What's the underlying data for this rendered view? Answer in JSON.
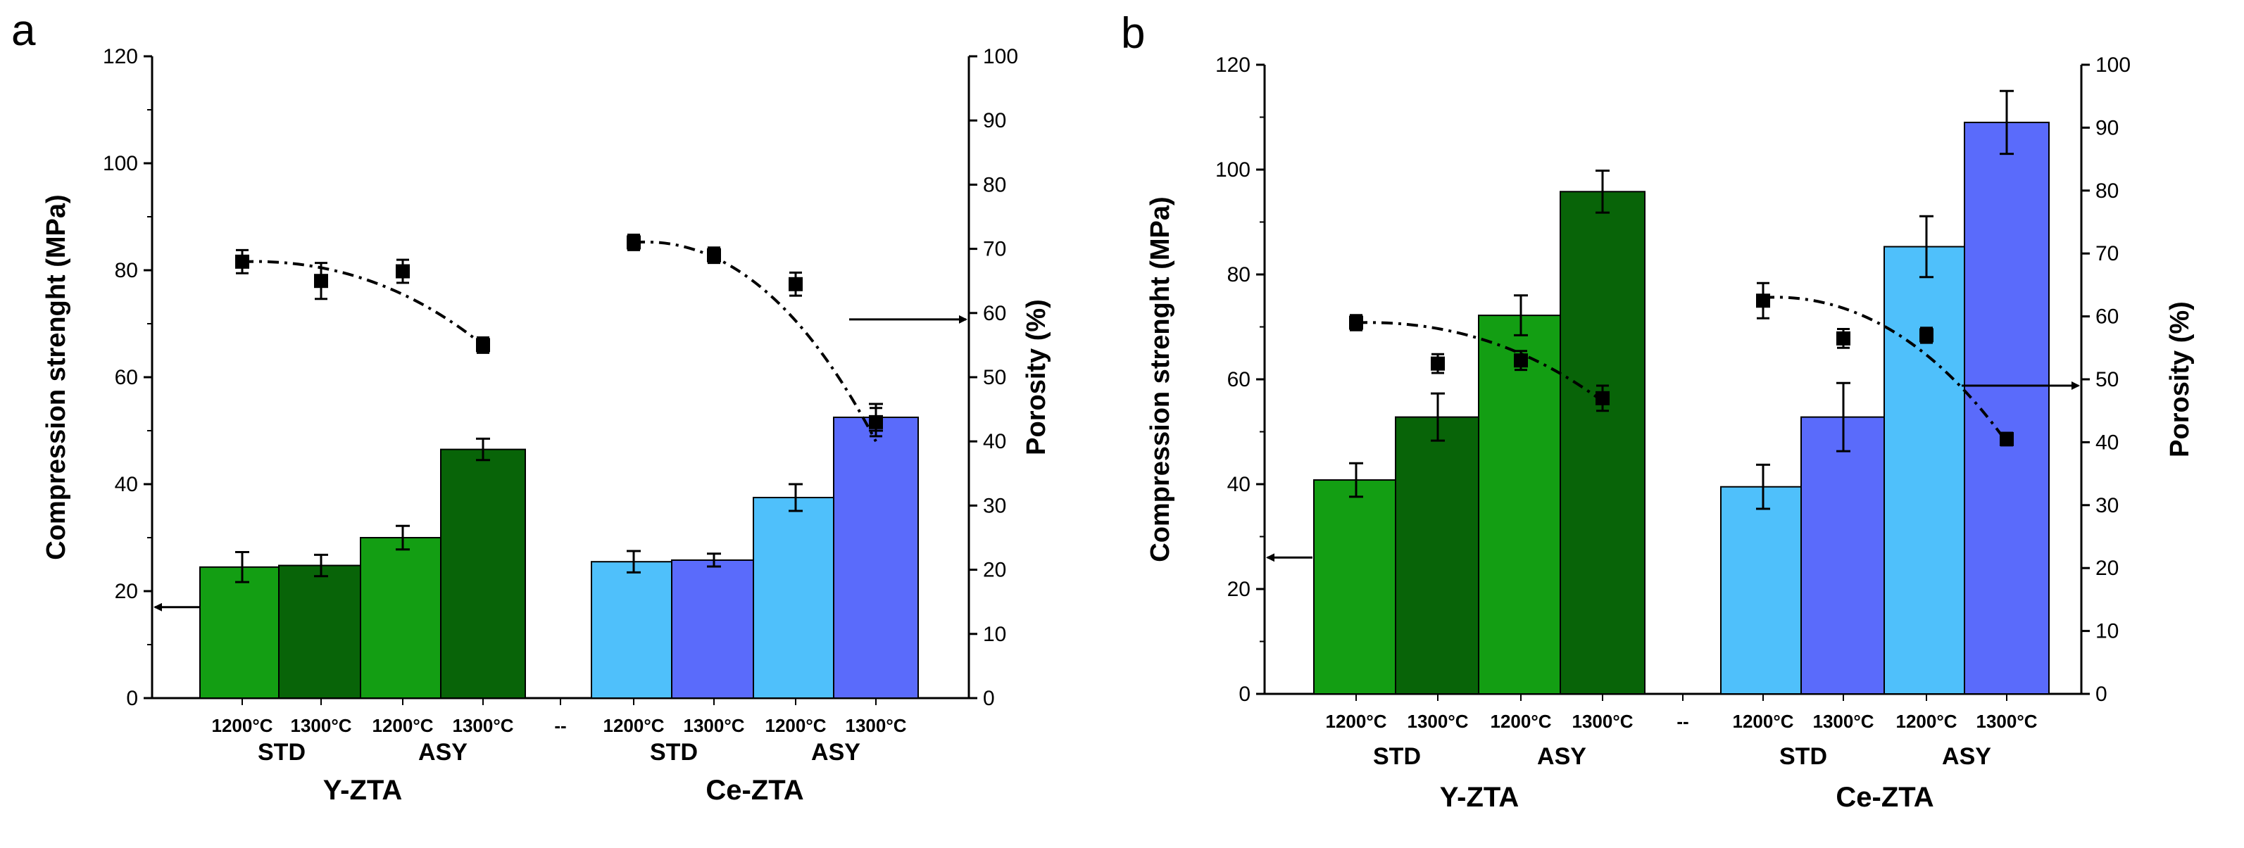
{
  "chart_data": [
    {
      "type": "bar",
      "panel_label": "a",
      "ylabel_left": "Compression strenght (MPa)",
      "ylabel_right": "Porosity (%)",
      "ylim_left": [
        0,
        120
      ],
      "yticks_left": [
        0,
        20,
        40,
        60,
        80,
        100,
        120
      ],
      "ylim_right": [
        0,
        100
      ],
      "yticks_right": [
        0,
        10,
        20,
        30,
        40,
        50,
        60,
        70,
        80,
        90,
        100
      ],
      "x_slots": [
        "1200°C",
        "1300°C",
        "1200°C",
        "1300°C",
        "--",
        "1200°C",
        "1300°C",
        "1200°C",
        "1300°C"
      ],
      "group_labels": [
        "STD",
        "ASY",
        "STD",
        "ASY"
      ],
      "family_labels": [
        "Y-ZTA",
        "Ce-ZTA"
      ],
      "series": [
        {
          "name": "Compression strength (bars)",
          "axis": "left",
          "values": [
            24.5,
            24.8,
            30,
            46.5,
            null,
            25.5,
            25.8,
            37.5,
            52.5
          ],
          "errors": [
            2.8,
            2,
            2.2,
            2,
            null,
            2,
            1.2,
            2.5,
            2.5
          ],
          "colors": [
            "#139E13",
            "#086408",
            "#139E13",
            "#086408",
            null,
            "#4FC0FB",
            "#5A6BFB",
            "#4FC0FB",
            "#5A6BFB"
          ]
        },
        {
          "name": "Porosity (points)",
          "axis": "right",
          "values": [
            68,
            65,
            66.5,
            55,
            null,
            71,
            69,
            64.5,
            43
          ],
          "errors": [
            1.8,
            2.8,
            1.8,
            1.2,
            null,
            1.2,
            1.2,
            1.8,
            2.2
          ]
        }
      ],
      "trend_lines": [
        {
          "slots": [
            0,
            3
          ],
          "porosity": [
            68,
            55
          ]
        },
        {
          "slots": [
            5,
            8
          ],
          "porosity": [
            71,
            40
          ]
        }
      ],
      "arrows": [
        {
          "points_to": "left",
          "at_value": 17,
          "axis": "left"
        },
        {
          "points_to": "right",
          "at_value": 59,
          "axis": "right"
        }
      ]
    },
    {
      "type": "bar",
      "panel_label": "b",
      "ylabel_left": "Compression strenght (MPa)",
      "ylabel_right": "Porosity (%)",
      "ylim_left": [
        0,
        120
      ],
      "yticks_left": [
        0,
        20,
        40,
        60,
        80,
        100,
        120
      ],
      "ylim_right": [
        0,
        100
      ],
      "yticks_right": [
        0,
        10,
        20,
        30,
        40,
        50,
        60,
        70,
        80,
        90,
        100
      ],
      "x_slots": [
        "1200°C",
        "1300°C",
        "1200°C",
        "1300°C",
        "--",
        "1200°C",
        "1300°C",
        "1200°C",
        "1300°C"
      ],
      "group_labels": [
        "STD",
        "ASY",
        "STD",
        "ASY"
      ],
      "family_labels": [
        "Y-ZTA",
        "Ce-ZTA"
      ],
      "series": [
        {
          "name": "Compression strength (bars)",
          "axis": "left",
          "values": [
            40.8,
            52.8,
            72.2,
            95.8,
            null,
            39.5,
            52.8,
            85.3,
            109
          ],
          "errors": [
            3.2,
            4.5,
            3.8,
            4,
            null,
            4.2,
            6.5,
            5.8,
            6
          ],
          "colors": [
            "#139E13",
            "#086408",
            "#139E13",
            "#086408",
            null,
            "#4FC0FB",
            "#5A6BFB",
            "#4FC0FB",
            "#5A6BFB"
          ]
        },
        {
          "name": "Porosity (points)",
          "axis": "right",
          "values": [
            59,
            52.5,
            53,
            47,
            null,
            62.5,
            56.5,
            57,
            40.5
          ],
          "errors": [
            1.2,
            1.5,
            1.5,
            2,
            null,
            2.8,
            1.5,
            1.2,
            1
          ]
        }
      ],
      "trend_lines": [
        {
          "slots": [
            0,
            3
          ],
          "porosity": [
            59,
            46.5
          ]
        },
        {
          "slots": [
            5,
            8
          ],
          "porosity": [
            63,
            40
          ]
        }
      ],
      "arrows": [
        {
          "points_to": "left",
          "at_value": 26,
          "axis": "left"
        },
        {
          "points_to": "right",
          "at_value": 49,
          "axis": "right"
        }
      ]
    }
  ]
}
